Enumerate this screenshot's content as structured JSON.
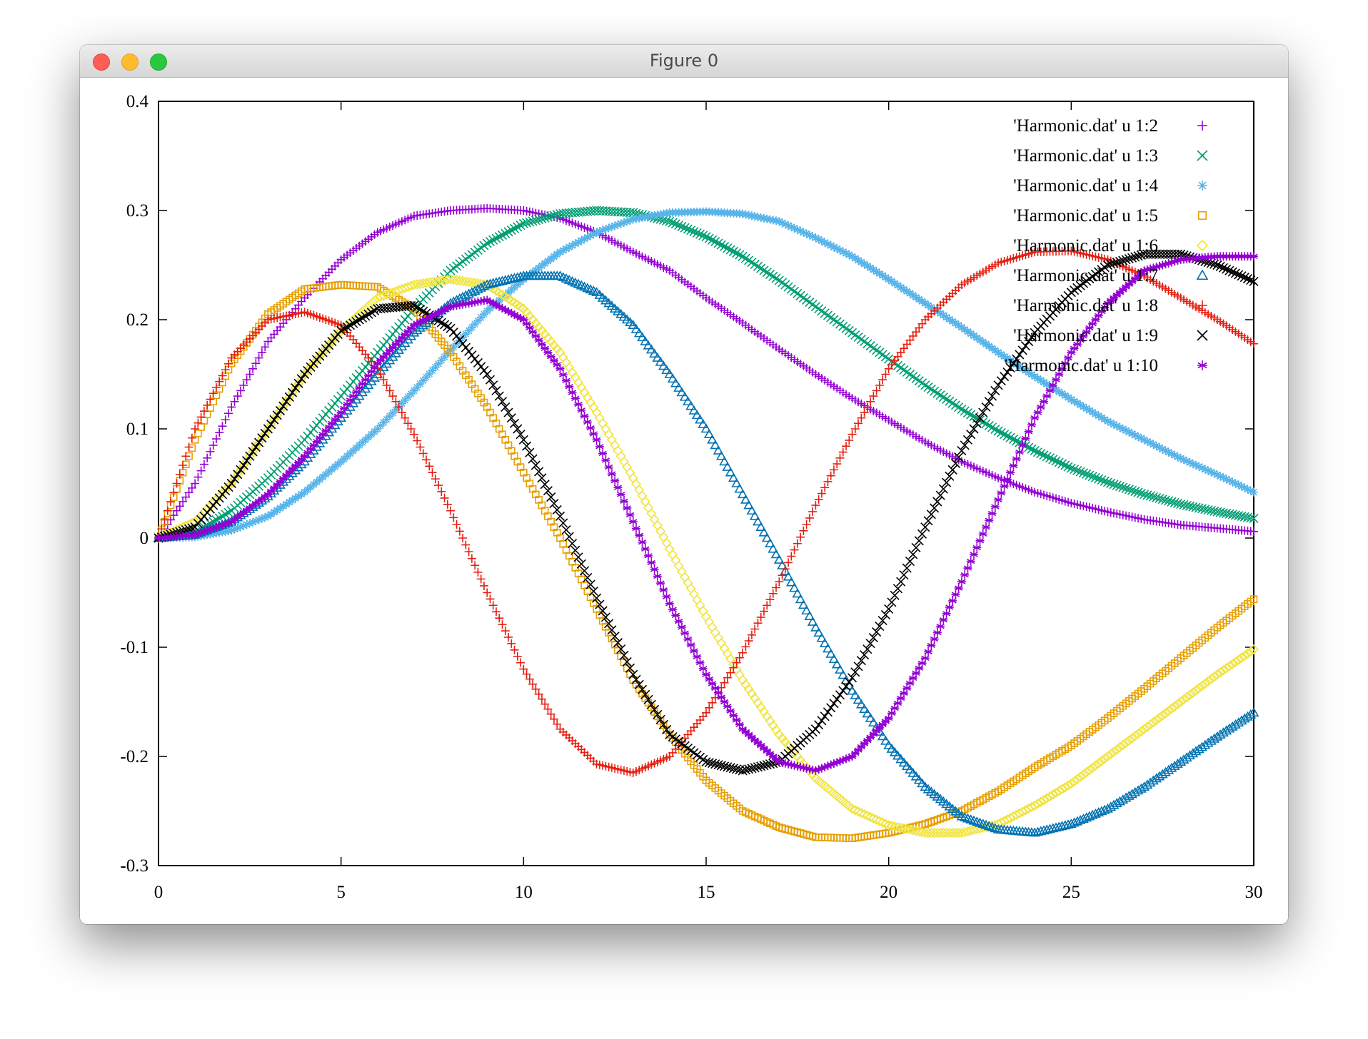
{
  "window": {
    "title": "Figure 0",
    "buttons": {
      "close": "close-button",
      "minimize": "minimize-button",
      "maximize": "maximize-button"
    }
  },
  "chart_data": {
    "type": "scatter",
    "title": "",
    "xlabel": "",
    "ylabel": "",
    "xlim": [
      0,
      30
    ],
    "ylim": [
      -0.3,
      0.4
    ],
    "xticks": [
      "0",
      "5",
      "10",
      "15",
      "20",
      "25",
      "30"
    ],
    "yticks": [
      "-0.3",
      "-0.2",
      "-0.1",
      "0",
      "0.1",
      "0.2",
      "0.3",
      "0.4"
    ],
    "grid": false,
    "legend_position": "top-right",
    "series": [
      {
        "name": "'Harmonic.dat' u 1:2",
        "color": "#9400d3",
        "marker": "plus",
        "x": [
          0,
          1,
          2,
          3,
          4,
          5,
          6,
          7,
          8,
          9,
          10,
          11,
          12,
          13,
          14,
          15,
          16,
          17,
          18,
          19,
          20,
          21,
          22,
          23,
          24,
          25,
          26,
          27,
          28,
          29,
          30
        ],
        "y": [
          0,
          0.05,
          0.12,
          0.18,
          0.22,
          0.255,
          0.28,
          0.295,
          0.3,
          0.302,
          0.3,
          0.293,
          0.28,
          0.262,
          0.245,
          0.22,
          0.197,
          0.173,
          0.15,
          0.128,
          0.108,
          0.088,
          0.07,
          0.055,
          0.042,
          0.032,
          0.024,
          0.017,
          0.012,
          0.009,
          0.006
        ]
      },
      {
        "name": "'Harmonic.dat' u 1:3",
        "color": "#009e73",
        "marker": "cross",
        "x": [
          0,
          1,
          2,
          3,
          4,
          5,
          6,
          7,
          8,
          9,
          10,
          11,
          12,
          13,
          14,
          15,
          16,
          17,
          18,
          19,
          20,
          21,
          22,
          23,
          24,
          25,
          26,
          27,
          28,
          29,
          30
        ],
        "y": [
          0,
          0.005,
          0.025,
          0.055,
          0.09,
          0.13,
          0.17,
          0.21,
          0.245,
          0.27,
          0.288,
          0.297,
          0.3,
          0.298,
          0.29,
          0.276,
          0.258,
          0.236,
          0.212,
          0.188,
          0.164,
          0.14,
          0.118,
          0.098,
          0.08,
          0.064,
          0.051,
          0.04,
          0.031,
          0.024,
          0.018
        ]
      },
      {
        "name": "'Harmonic.dat' u 1:4",
        "color": "#56b4e9",
        "marker": "star",
        "x": [
          0,
          1,
          2,
          3,
          4,
          5,
          6,
          7,
          8,
          9,
          10,
          11,
          12,
          13,
          14,
          15,
          16,
          17,
          18,
          19,
          20,
          21,
          22,
          23,
          24,
          25,
          26,
          27,
          28,
          29,
          30
        ],
        "y": [
          0,
          0.001,
          0.007,
          0.02,
          0.042,
          0.07,
          0.1,
          0.135,
          0.172,
          0.208,
          0.237,
          0.262,
          0.28,
          0.292,
          0.298,
          0.299,
          0.297,
          0.29,
          0.275,
          0.258,
          0.237,
          0.215,
          0.193,
          0.17,
          0.148,
          0.127,
          0.107,
          0.09,
          0.073,
          0.058,
          0.042
        ]
      },
      {
        "name": "'Harmonic.dat' u 1:5",
        "color": "#e69f00",
        "marker": "square",
        "x": [
          0,
          1,
          2,
          3,
          4,
          5,
          6,
          7,
          8,
          9,
          10,
          11,
          12,
          13,
          14,
          15,
          16,
          17,
          18,
          19,
          20,
          21,
          22,
          23,
          24,
          25,
          26,
          27,
          28,
          29,
          30
        ],
        "y": [
          0,
          0.09,
          0.16,
          0.205,
          0.228,
          0.232,
          0.23,
          0.21,
          0.17,
          0.12,
          0.06,
          0,
          -0.065,
          -0.13,
          -0.18,
          -0.222,
          -0.25,
          -0.265,
          -0.274,
          -0.275,
          -0.27,
          -0.262,
          -0.25,
          -0.232,
          -0.21,
          -0.19,
          -0.165,
          -0.138,
          -0.11,
          -0.082,
          -0.056
        ]
      },
      {
        "name": "'Harmonic.dat' u 1:6",
        "color": "#f0e442",
        "marker": "diamond",
        "x": [
          0,
          1,
          2,
          3,
          4,
          5,
          6,
          7,
          8,
          9,
          10,
          11,
          12,
          13,
          14,
          15,
          16,
          17,
          18,
          19,
          20,
          21,
          22,
          23,
          24,
          25,
          26,
          27,
          28,
          29,
          30
        ],
        "y": [
          0,
          0.015,
          0.05,
          0.1,
          0.15,
          0.19,
          0.22,
          0.232,
          0.237,
          0.232,
          0.21,
          0.17,
          0.115,
          0.055,
          -0.01,
          -0.072,
          -0.13,
          -0.18,
          -0.22,
          -0.248,
          -0.263,
          -0.27,
          -0.27,
          -0.262,
          -0.245,
          -0.225,
          -0.2,
          -0.175,
          -0.15,
          -0.125,
          -0.102
        ]
      },
      {
        "name": "'Harmonic.dat' u 1:7",
        "color": "#0072b2",
        "marker": "triangle",
        "x": [
          0,
          1,
          2,
          3,
          4,
          5,
          6,
          7,
          8,
          9,
          10,
          11,
          12,
          13,
          14,
          15,
          16,
          17,
          18,
          19,
          20,
          21,
          22,
          23,
          24,
          25,
          26,
          27,
          28,
          29,
          30
        ],
        "y": [
          0,
          0.003,
          0.015,
          0.038,
          0.07,
          0.11,
          0.15,
          0.188,
          0.215,
          0.232,
          0.24,
          0.24,
          0.225,
          0.195,
          0.15,
          0.1,
          0.04,
          -0.02,
          -0.082,
          -0.14,
          -0.19,
          -0.228,
          -0.255,
          -0.267,
          -0.27,
          -0.262,
          -0.248,
          -0.228,
          -0.205,
          -0.182,
          -0.16
        ]
      },
      {
        "name": "'Harmonic.dat' u 1:8",
        "color": "#e51e10",
        "marker": "plus",
        "x": [
          0,
          1,
          2,
          3,
          4,
          5,
          6,
          7,
          8,
          9,
          10,
          11,
          12,
          13,
          14,
          15,
          16,
          17,
          18,
          19,
          20,
          21,
          22,
          23,
          24,
          25,
          26,
          27,
          28,
          29,
          30
        ],
        "y": [
          0,
          0.1,
          0.165,
          0.2,
          0.207,
          0.195,
          0.155,
          0.095,
          0.025,
          -0.05,
          -0.12,
          -0.175,
          -0.207,
          -0.215,
          -0.2,
          -0.16,
          -0.105,
          -0.04,
          0.03,
          0.095,
          0.155,
          0.2,
          0.232,
          0.252,
          0.262,
          0.263,
          0.255,
          0.24,
          0.22,
          0.2,
          0.178
        ]
      },
      {
        "name": "'Harmonic.dat' u 1:9",
        "color": "#000000",
        "marker": "cross",
        "x": [
          0,
          1,
          2,
          3,
          4,
          5,
          6,
          7,
          8,
          9,
          10,
          11,
          12,
          13,
          14,
          15,
          16,
          17,
          18,
          19,
          20,
          21,
          22,
          23,
          24,
          25,
          26,
          27,
          28,
          29,
          30
        ],
        "y": [
          0,
          0.01,
          0.05,
          0.1,
          0.15,
          0.19,
          0.21,
          0.213,
          0.192,
          0.15,
          0.09,
          0.02,
          -0.055,
          -0.125,
          -0.18,
          -0.205,
          -0.213,
          -0.205,
          -0.175,
          -0.128,
          -0.065,
          0.01,
          0.08,
          0.14,
          0.188,
          0.225,
          0.25,
          0.26,
          0.26,
          0.25,
          0.235
        ]
      },
      {
        "name": "'Harmonic.dat' u 1:10",
        "color": "#9400d3",
        "marker": "asterisk",
        "x": [
          0,
          1,
          2,
          3,
          4,
          5,
          6,
          7,
          8,
          9,
          10,
          11,
          12,
          13,
          14,
          15,
          16,
          17,
          18,
          19,
          20,
          21,
          22,
          23,
          24,
          25,
          26,
          27,
          28,
          29,
          30
        ],
        "y": [
          0,
          0.003,
          0.015,
          0.04,
          0.075,
          0.115,
          0.16,
          0.195,
          0.212,
          0.218,
          0.2,
          0.155,
          0.09,
          0.015,
          -0.06,
          -0.125,
          -0.175,
          -0.205,
          -0.213,
          -0.2,
          -0.165,
          -0.11,
          -0.04,
          0.035,
          0.11,
          0.17,
          0.215,
          0.245,
          0.255,
          0.258,
          0.258
        ]
      }
    ]
  }
}
